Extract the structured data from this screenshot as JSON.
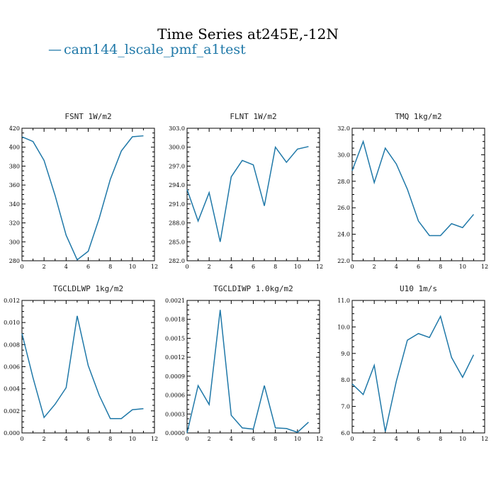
{
  "figure": {
    "title": "Time Series at245E,-12N",
    "legend_label": "cam144_lscale_pmf_a1test",
    "legend_dash": "—",
    "line_color": "#1f78a8"
  },
  "chart_data": [
    {
      "type": "line",
      "title": "FSNT   1W/m2",
      "xlim": [
        0,
        12
      ],
      "ylim": [
        280,
        420
      ],
      "xticks": [
        "0",
        "2",
        "4",
        "6",
        "8",
        "10",
        "12"
      ],
      "yticks": [
        "280",
        "300",
        "320",
        "340",
        "360",
        "380",
        "400",
        "420"
      ],
      "x": [
        0,
        1,
        2,
        3,
        4,
        5,
        6,
        7,
        8,
        9,
        10,
        11
      ],
      "values": [
        411,
        406,
        386,
        349,
        307,
        281,
        290,
        325,
        366,
        396,
        411,
        412
      ]
    },
    {
      "type": "line",
      "title": "FLNT   1W/m2",
      "xlim": [
        0,
        12
      ],
      "ylim": [
        282,
        303
      ],
      "xticks": [
        "0",
        "2",
        "4",
        "6",
        "8",
        "10",
        "12"
      ],
      "yticks": [
        "282.0",
        "285.0",
        "288.0",
        "291.0",
        "294.0",
        "297.0",
        "300.0",
        "303.0"
      ],
      "x": [
        0,
        1,
        2,
        3,
        4,
        5,
        6,
        7,
        8,
        9,
        10,
        11
      ],
      "values": [
        293.3,
        288.3,
        292.8,
        285.0,
        295.3,
        297.9,
        297.2,
        290.7,
        300.0,
        297.6,
        299.7,
        300.1
      ]
    },
    {
      "type": "line",
      "title": "TMQ   1kg/m2",
      "xlim": [
        0,
        12
      ],
      "ylim": [
        22,
        32
      ],
      "xticks": [
        "0",
        "2",
        "4",
        "6",
        "8",
        "10",
        "12"
      ],
      "yticks": [
        "22.0",
        "24.0",
        "26.0",
        "28.0",
        "30.0",
        "32.0"
      ],
      "x": [
        0,
        1,
        2,
        3,
        4,
        5,
        6,
        7,
        8,
        9,
        10,
        11
      ],
      "values": [
        28.8,
        31.0,
        27.9,
        30.5,
        29.3,
        27.4,
        25.0,
        23.9,
        23.9,
        24.8,
        24.5,
        25.5
      ]
    },
    {
      "type": "line",
      "title": "TGCLDLWP   1kg/m2",
      "xlim": [
        0,
        12
      ],
      "ylim": [
        0,
        0.012
      ],
      "xticks": [
        "0",
        "2",
        "4",
        "6",
        "8",
        "10",
        "12"
      ],
      "yticks": [
        "0.000",
        "0.002",
        "0.004",
        "0.006",
        "0.008",
        "0.010",
        "0.012"
      ],
      "x": [
        0,
        1,
        2,
        3,
        4,
        5,
        6,
        7,
        8,
        9,
        10,
        11
      ],
      "values": [
        0.009,
        0.005,
        0.0014,
        0.0026,
        0.0041,
        0.0106,
        0.0061,
        0.0034,
        0.0013,
        0.0013,
        0.0021,
        0.0022
      ]
    },
    {
      "type": "line",
      "title": "TGCLDIWP   1.0kg/m2",
      "xlim": [
        0,
        12
      ],
      "ylim": [
        0,
        0.0021
      ],
      "xticks": [
        "0",
        "2",
        "4",
        "6",
        "8",
        "10",
        "12"
      ],
      "yticks": [
        "0.0000",
        "0.0003",
        "0.0006",
        "0.0009",
        "0.0012",
        "0.0015",
        "0.0018",
        "0.0021"
      ],
      "x": [
        0,
        1,
        2,
        3,
        4,
        5,
        6,
        7,
        8,
        9,
        10,
        11
      ],
      "values": [
        0.0,
        0.00075,
        0.00045,
        0.00195,
        0.00028,
        8e-05,
        6e-05,
        0.00075,
        8e-05,
        7e-05,
        1e-05,
        0.00017
      ]
    },
    {
      "type": "line",
      "title": "U10   1m/s",
      "xlim": [
        0,
        12
      ],
      "ylim": [
        6,
        11
      ],
      "xticks": [
        "0",
        "2",
        "4",
        "6",
        "8",
        "10",
        "12"
      ],
      "yticks": [
        "6.0",
        "7.0",
        "8.0",
        "9.0",
        "10.0",
        "11.0"
      ],
      "x": [
        0,
        1,
        2,
        3,
        4,
        5,
        6,
        7,
        8,
        9,
        10,
        11
      ],
      "values": [
        7.85,
        7.45,
        8.55,
        6.05,
        7.95,
        9.5,
        9.75,
        9.6,
        10.4,
        8.85,
        8.1,
        8.95
      ]
    }
  ]
}
